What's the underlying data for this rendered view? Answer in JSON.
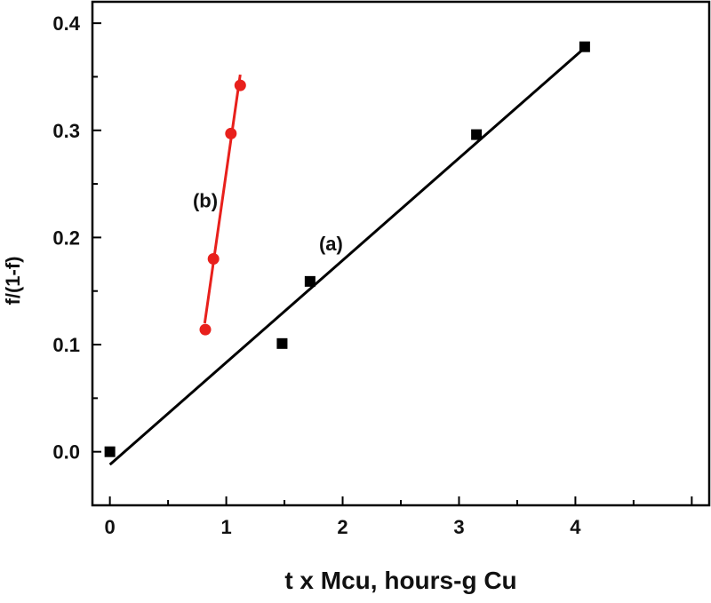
{
  "chart_data": {
    "type": "scatter",
    "xlabel": "t x Mcu, hours-g Cu",
    "ylabel": "f/(1-f)",
    "xlim": [
      -0.15,
      5.15
    ],
    "ylim": [
      -0.05,
      0.42
    ],
    "x_ticks": [
      "0",
      "1",
      "2",
      "3",
      "4"
    ],
    "y_ticks": [
      "0.0",
      "0.1",
      "0.2",
      "0.3",
      "0.4"
    ],
    "grid": false,
    "series": [
      {
        "name": "(a)",
        "marker": "square",
        "color": "#000000",
        "points": [
          {
            "x": 0.0,
            "y": 0.0
          },
          {
            "x": 1.48,
            "y": 0.101
          },
          {
            "x": 1.72,
            "y": 0.159
          },
          {
            "x": 3.15,
            "y": 0.296
          },
          {
            "x": 4.08,
            "y": 0.378
          }
        ],
        "fit": {
          "x": [
            0.0,
            4.08
          ],
          "y": [
            -0.012,
            0.377
          ]
        }
      },
      {
        "name": "(b)",
        "marker": "circle",
        "color": "#e8201c",
        "points": [
          {
            "x": 0.82,
            "y": 0.114
          },
          {
            "x": 0.89,
            "y": 0.18
          },
          {
            "x": 1.04,
            "y": 0.297
          },
          {
            "x": 1.12,
            "y": 0.342
          }
        ],
        "fit": {
          "x": [
            0.815,
            1.12
          ],
          "y": [
            0.12,
            0.352
          ]
        }
      }
    ],
    "annotations": [
      {
        "text": "(a)",
        "x": 1.9,
        "y": 0.188
      },
      {
        "text": "(b)",
        "x": 0.82,
        "y": 0.228
      }
    ]
  }
}
